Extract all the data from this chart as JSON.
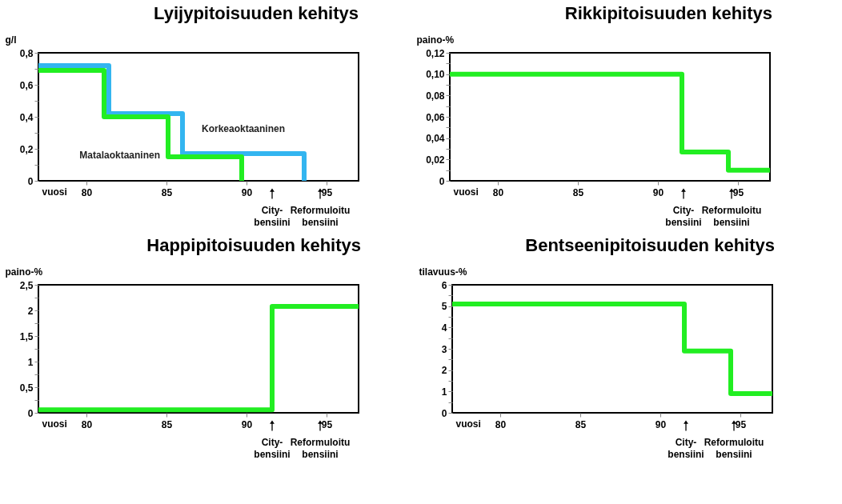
{
  "chart_data": [
    {
      "type": "step",
      "title": "Lyijypitoisuuden kehitys",
      "ylabel": "g/l",
      "xlabel": "vuosi",
      "xlim": [
        77,
        97
      ],
      "xticks": [
        80,
        85,
        90,
        95
      ],
      "ylim": [
        0,
        0.8
      ],
      "yticks": [
        0,
        {
          "value": 0.1,
          "label": null
        },
        {
          "value": 0.2,
          "label": "0,2"
        },
        {
          "value": 0.3,
          "label": null
        },
        {
          "value": 0.4,
          "label": "0,4"
        },
        {
          "value": 0.5,
          "label": null
        },
        {
          "value": 0.6,
          "label": "0,6"
        },
        {
          "value": 0.7,
          "label": null
        },
        {
          "value": 0.8,
          "label": "0,8"
        }
      ],
      "grid": false,
      "legend": false,
      "marker": "none",
      "line_style": "solid",
      "series": [
        {
          "name": "Korkeaoktaaninen",
          "color": "#33b5f0",
          "x": [
            77,
            81.4,
            86,
            93.6
          ],
          "values": [
            0.72,
            0.42,
            0.17,
            0
          ]
        },
        {
          "name": "Matalaoktaaninen",
          "color": "#22ee22",
          "x": [
            77,
            81.1,
            85.1,
            89.7
          ],
          "values": [
            0.69,
            0.4,
            0.15,
            0
          ]
        }
      ],
      "annotations": [
        "City-\nbensiini",
        "Reformuloitu\nbensiini"
      ]
    },
    {
      "type": "step",
      "title": "Rikkipitoisuuden kehitys",
      "ylabel": "paino-%",
      "xlabel": "vuosi",
      "xlim": [
        77,
        97
      ],
      "xticks": [
        80,
        85,
        90,
        95
      ],
      "ylim": [
        0,
        0.12
      ],
      "yticks": [
        0,
        {
          "value": 0.01,
          "label": null
        },
        {
          "value": 0.02,
          "label": "0,02"
        },
        {
          "value": 0.03,
          "label": null
        },
        {
          "value": 0.04,
          "label": "0,04"
        },
        {
          "value": 0.05,
          "label": null
        },
        {
          "value": 0.06,
          "label": "0,06"
        },
        {
          "value": 0.07,
          "label": null
        },
        {
          "value": 0.08,
          "label": "0,08"
        },
        {
          "value": 0.09,
          "label": null
        },
        {
          "value": 0.1,
          "label": "0,10"
        },
        {
          "value": 0.11,
          "label": null
        },
        {
          "value": 0.12,
          "label": "0,12"
        }
      ],
      "grid": false,
      "legend": false,
      "marker": "none",
      "line_style": "solid",
      "series": [
        {
          "color": "#22ee22",
          "x": [
            77,
            91.5,
            94.4,
            97
          ],
          "values": [
            0.1,
            0.027,
            0.01,
            0.01
          ]
        }
      ],
      "annotations": [
        "City-\nbensiini",
        "Reformuloitu\nbensiini"
      ]
    },
    {
      "type": "step",
      "title": "Happipitoisuuden kehitys",
      "ylabel": "paino-%",
      "xlabel": "vuosi",
      "xlim": [
        77,
        97
      ],
      "xticks": [
        80,
        85,
        90,
        95
      ],
      "ylim": [
        0,
        2.5
      ],
      "yticks": [
        0,
        {
          "value": 0.25,
          "label": null
        },
        {
          "value": 0.5,
          "label": "0,5"
        },
        {
          "value": 0.75,
          "label": null
        },
        1,
        {
          "value": 1.25,
          "label": null
        },
        {
          "value": 1.5,
          "label": "1,5"
        },
        {
          "value": 1.75,
          "label": null
        },
        2,
        {
          "value": 2.25,
          "label": null
        },
        {
          "value": 2.5,
          "label": "2,5"
        }
      ],
      "grid": false,
      "legend": false,
      "marker": "none",
      "line_style": "solid",
      "series": [
        {
          "color": "#22ee22",
          "x": [
            77,
            91.6,
            97
          ],
          "values": [
            0.06,
            2.08,
            2.08
          ]
        }
      ],
      "annotations": [
        "City-\nbensiini",
        "Reformuloitu\nbensiini"
      ]
    },
    {
      "type": "step",
      "title": "Bentseenipitoisuuden kehitys",
      "ylabel": "tilavuus-%",
      "xlabel": "vuosi",
      "xlim": [
        77,
        97
      ],
      "xticks": [
        80,
        85,
        90,
        95
      ],
      "ylim": [
        0,
        6
      ],
      "yticks": [
        0,
        {
          "value": 0.5,
          "label": null
        },
        1,
        {
          "value": 1.5,
          "label": null
        },
        2,
        {
          "value": 2.5,
          "label": null
        },
        3,
        {
          "value": 3.5,
          "label": null
        },
        4,
        {
          "value": 4.5,
          "label": null
        },
        5,
        {
          "value": 5.5,
          "label": null
        },
        6
      ],
      "grid": false,
      "legend": false,
      "marker": "none",
      "line_style": "solid",
      "series": [
        {
          "color": "#22ee22",
          "x": [
            77,
            91.5,
            94.4,
            97
          ],
          "values": [
            5.1,
            2.9,
            0.9,
            0.9
          ]
        }
      ],
      "annotations": [
        "City-\nbensiini",
        "Reformuloitu\nbensiini"
      ]
    }
  ]
}
